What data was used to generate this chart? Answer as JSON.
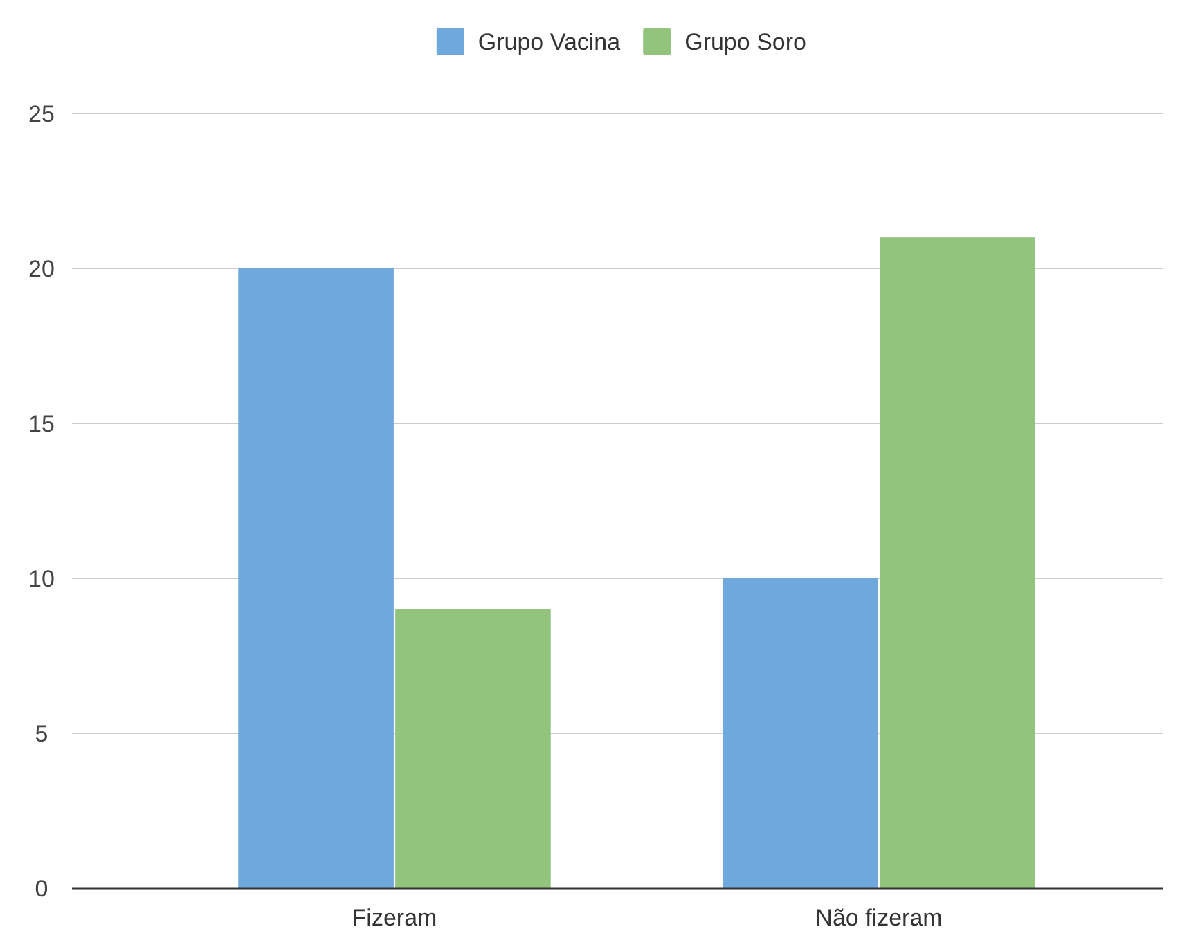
{
  "chart_data": {
    "type": "bar",
    "categories": [
      "Fizeram",
      "Não fizeram"
    ],
    "series": [
      {
        "name": "Grupo Vacina",
        "color": "#6fa8dc",
        "values": [
          20,
          10
        ]
      },
      {
        "name": "Grupo Soro",
        "color": "#93c47d",
        "values": [
          9,
          21
        ]
      }
    ],
    "ylim": [
      0,
      25
    ],
    "yticks": [
      0,
      5,
      10,
      15,
      20,
      25
    ],
    "grid": "y",
    "legend": "top"
  }
}
